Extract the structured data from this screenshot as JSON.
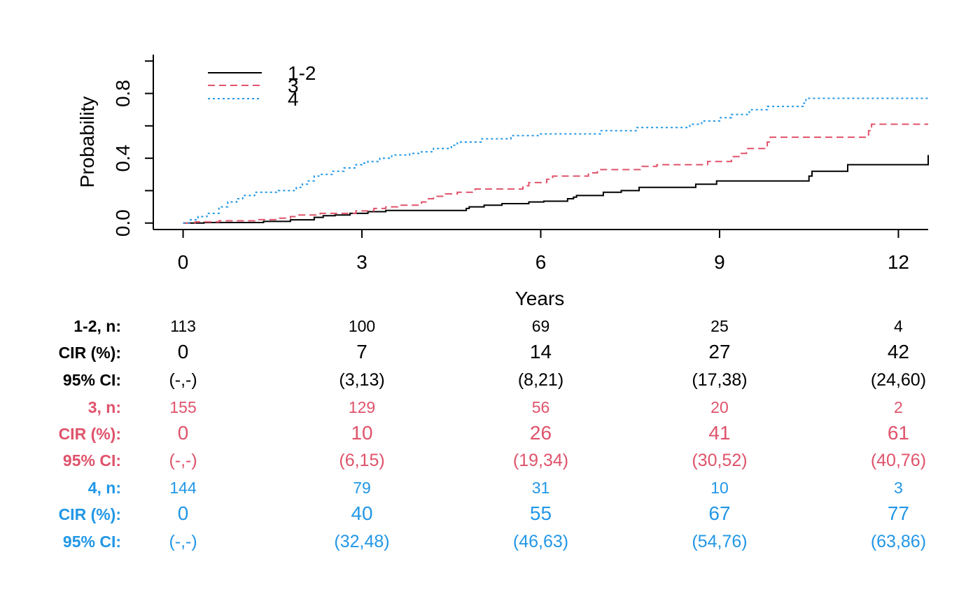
{
  "chart_data": {
    "type": "line",
    "xlabel": "Years",
    "ylabel": "Probability",
    "xlim": [
      -0.5,
      12.5
    ],
    "ylim": [
      -0.04,
      1.04
    ],
    "x_ticks": [
      0,
      3,
      6,
      9,
      12
    ],
    "x_tick_labels": [
      "0",
      "3",
      "6",
      "9",
      "12"
    ],
    "y_ticks": [
      0.0,
      0.2,
      0.4,
      0.6,
      0.8,
      1.0
    ],
    "y_tick_labels": [
      "0.0",
      "",
      "0.4",
      "",
      "0.8",
      ""
    ],
    "grid": false,
    "legend_position": "top-left",
    "series": [
      {
        "name": "1-2",
        "color": "#000000",
        "dash": "solid",
        "points": [
          [
            0,
            0
          ],
          [
            0.35,
            0.003
          ],
          [
            1.35,
            0.01
          ],
          [
            1.8,
            0.02
          ],
          [
            2.2,
            0.035
          ],
          [
            2.35,
            0.045
          ],
          [
            2.55,
            0.05
          ],
          [
            2.8,
            0.06
          ],
          [
            3.1,
            0.07
          ],
          [
            3.4,
            0.078
          ],
          [
            4.75,
            0.09
          ],
          [
            4.8,
            0.1
          ],
          [
            5.05,
            0.11
          ],
          [
            5.35,
            0.12
          ],
          [
            5.8,
            0.13
          ],
          [
            6.05,
            0.135
          ],
          [
            6.45,
            0.15
          ],
          [
            6.55,
            0.16
          ],
          [
            6.6,
            0.17
          ],
          [
            7.05,
            0.19
          ],
          [
            7.35,
            0.2
          ],
          [
            7.65,
            0.22
          ],
          [
            8.6,
            0.24
          ],
          [
            8.95,
            0.26
          ],
          [
            10.5,
            0.29
          ],
          [
            10.55,
            0.32
          ],
          [
            11.15,
            0.36
          ],
          [
            12.5,
            0.42
          ]
        ]
      },
      {
        "name": "3",
        "color": "#DF536B",
        "dash": "dashed",
        "points": [
          [
            0,
            0
          ],
          [
            0.2,
            0.007
          ],
          [
            0.6,
            0.014
          ],
          [
            1.2,
            0.021
          ],
          [
            1.6,
            0.03
          ],
          [
            1.8,
            0.04
          ],
          [
            1.9,
            0.05
          ],
          [
            2.3,
            0.06
          ],
          [
            2.9,
            0.075
          ],
          [
            3.2,
            0.09
          ],
          [
            3.4,
            0.1
          ],
          [
            3.6,
            0.11
          ],
          [
            4.0,
            0.13
          ],
          [
            4.1,
            0.15
          ],
          [
            4.2,
            0.165
          ],
          [
            4.4,
            0.18
          ],
          [
            4.6,
            0.19
          ],
          [
            4.9,
            0.21
          ],
          [
            5.7,
            0.23
          ],
          [
            5.8,
            0.25
          ],
          [
            6.1,
            0.27
          ],
          [
            6.2,
            0.29
          ],
          [
            6.8,
            0.31
          ],
          [
            6.95,
            0.33
          ],
          [
            7.7,
            0.35
          ],
          [
            7.95,
            0.36
          ],
          [
            8.8,
            0.38
          ],
          [
            9.2,
            0.41
          ],
          [
            9.35,
            0.43
          ],
          [
            9.45,
            0.46
          ],
          [
            9.8,
            0.5
          ],
          [
            9.85,
            0.53
          ],
          [
            11.5,
            0.57
          ],
          [
            11.55,
            0.61
          ],
          [
            12.5,
            0.61
          ]
        ]
      },
      {
        "name": "4",
        "color": "#2297E6",
        "dash": "dotted",
        "points": [
          [
            0,
            0
          ],
          [
            0.1,
            0.02
          ],
          [
            0.25,
            0.04
          ],
          [
            0.4,
            0.06
          ],
          [
            0.6,
            0.1
          ],
          [
            0.75,
            0.13
          ],
          [
            0.9,
            0.15
          ],
          [
            1.0,
            0.17
          ],
          [
            1.2,
            0.19
          ],
          [
            1.6,
            0.2
          ],
          [
            1.9,
            0.22
          ],
          [
            2.0,
            0.24
          ],
          [
            2.1,
            0.26
          ],
          [
            2.2,
            0.29
          ],
          [
            2.3,
            0.3
          ],
          [
            2.5,
            0.32
          ],
          [
            2.7,
            0.34
          ],
          [
            2.9,
            0.36
          ],
          [
            3.0,
            0.37
          ],
          [
            3.1,
            0.38
          ],
          [
            3.3,
            0.4
          ],
          [
            3.5,
            0.42
          ],
          [
            3.8,
            0.43
          ],
          [
            4.0,
            0.44
          ],
          [
            4.2,
            0.46
          ],
          [
            4.5,
            0.48
          ],
          [
            4.6,
            0.5
          ],
          [
            5.0,
            0.52
          ],
          [
            5.5,
            0.54
          ],
          [
            6.0,
            0.55
          ],
          [
            7.0,
            0.57
          ],
          [
            7.6,
            0.59
          ],
          [
            8.5,
            0.61
          ],
          [
            8.7,
            0.63
          ],
          [
            9.0,
            0.65
          ],
          [
            9.2,
            0.67
          ],
          [
            9.5,
            0.7
          ],
          [
            9.8,
            0.72
          ],
          [
            10.4,
            0.74
          ],
          [
            10.45,
            0.77
          ],
          [
            12.5,
            0.77
          ]
        ]
      }
    ]
  },
  "risk_table": {
    "groups": [
      {
        "color": "#000000",
        "rows": [
          {
            "label": "1-2, n:",
            "kind": "n",
            "values": [
              "113",
              "100",
              "69",
              "25",
              "4"
            ]
          },
          {
            "label": "CIR (%):",
            "kind": "cir",
            "values": [
              "0",
              "7",
              "14",
              "27",
              "42"
            ]
          },
          {
            "label": "95% CI:",
            "kind": "ci",
            "values": [
              "(-,-)",
              "(3,13)",
              "(8,21)",
              "(17,38)",
              "(24,60)"
            ]
          }
        ]
      },
      {
        "color": "#DF536B",
        "rows": [
          {
            "label": "3, n:",
            "kind": "n",
            "values": [
              "155",
              "129",
              "56",
              "20",
              "2"
            ]
          },
          {
            "label": "CIR (%):",
            "kind": "cir",
            "values": [
              "0",
              "10",
              "26",
              "41",
              "61"
            ]
          },
          {
            "label": "95% CI:",
            "kind": "ci",
            "values": [
              "(-,-)",
              "(6,15)",
              "(19,34)",
              "(30,52)",
              "(40,76)"
            ]
          }
        ]
      },
      {
        "color": "#2297E6",
        "rows": [
          {
            "label": "4, n:",
            "kind": "n",
            "values": [
              "144",
              "79",
              "31",
              "10",
              "3"
            ]
          },
          {
            "label": "CIR (%):",
            "kind": "cir",
            "values": [
              "0",
              "40",
              "55",
              "67",
              "77"
            ]
          },
          {
            "label": "95% CI:",
            "kind": "ci",
            "values": [
              "(-,-)",
              "(32,48)",
              "(46,63)",
              "(54,76)",
              "(63,86)"
            ]
          }
        ]
      }
    ]
  }
}
